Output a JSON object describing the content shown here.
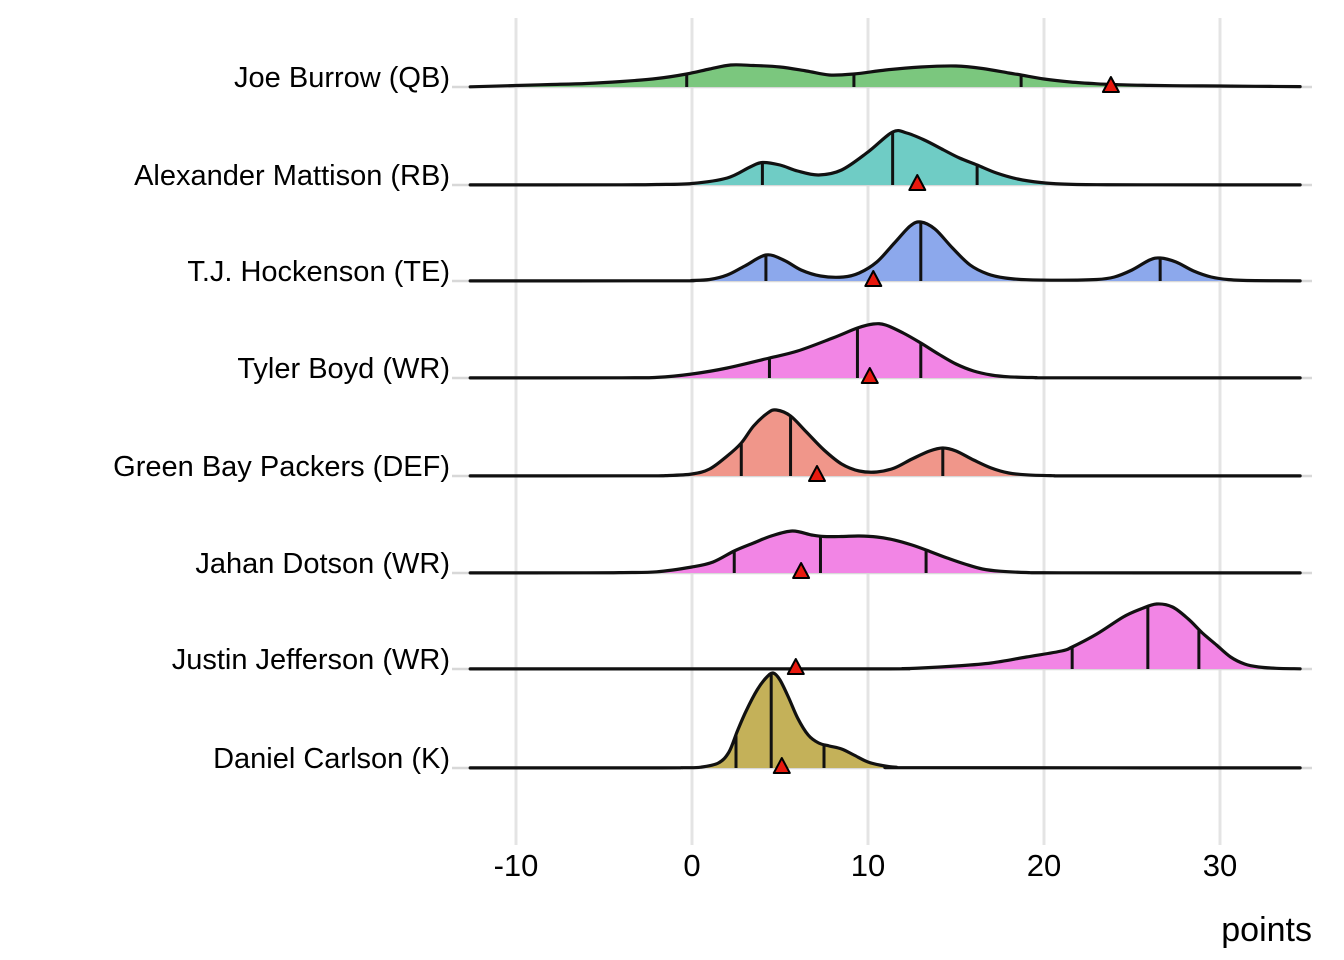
{
  "chart_data": {
    "type": "ridgeline",
    "title": "",
    "xlabel": "points",
    "x_axis": {
      "label": "points",
      "ticks": [
        -10,
        0,
        10,
        20,
        30
      ],
      "range": [
        -13,
        34.5
      ],
      "grid": true
    },
    "marker_meaning": "actual-points-triangle",
    "marker_color": "#e8190e",
    "grid_color": "#e4e4e4",
    "baseline_color": "#d8d8d8",
    "curve_color": "#111111",
    "rows": [
      {
        "label": "Joe Burrow (QB)",
        "fill": "#7bc77e",
        "quantiles": [
          -0.3,
          9.2,
          18.7
        ],
        "actual": 23.8,
        "density": [
          [
            -12.6,
            0.2
          ],
          [
            -10,
            1.5
          ],
          [
            -8,
            2.5
          ],
          [
            -6,
            3.5
          ],
          [
            -4,
            5.5
          ],
          [
            -2,
            8.5
          ],
          [
            -0.3,
            13
          ],
          [
            1,
            18
          ],
          [
            2.2,
            22
          ],
          [
            3.5,
            21.5
          ],
          [
            5,
            20
          ],
          [
            6.5,
            16
          ],
          [
            7.8,
            12
          ],
          [
            9.2,
            13
          ],
          [
            11,
            17
          ],
          [
            13,
            20
          ],
          [
            15,
            21
          ],
          [
            16.5,
            18.5
          ],
          [
            18,
            14
          ],
          [
            18.7,
            12
          ],
          [
            20,
            8
          ],
          [
            21.5,
            5
          ],
          [
            23,
            3.2
          ],
          [
            24.5,
            2.2
          ],
          [
            26,
            1.6
          ],
          [
            28,
            1.2
          ],
          [
            30,
            1
          ],
          [
            32,
            0.7
          ],
          [
            34.55,
            0.4
          ]
        ]
      },
      {
        "label": "Alexander Mattison (RB)",
        "fill": "#6fccc5",
        "quantiles": [
          4.0,
          11.4,
          16.2
        ],
        "actual": 12.8,
        "density": [
          [
            -12.6,
            0.1
          ],
          [
            -4,
            0.2
          ],
          [
            -2,
            0.5
          ],
          [
            0,
            1.5
          ],
          [
            2,
            7
          ],
          [
            3.3,
            18
          ],
          [
            4,
            22.5
          ],
          [
            5,
            20
          ],
          [
            6,
            14
          ],
          [
            7.2,
            10
          ],
          [
            8.5,
            15
          ],
          [
            10,
            33
          ],
          [
            11.4,
            53
          ],
          [
            12.2,
            52
          ],
          [
            13.2,
            45
          ],
          [
            14.3,
            35
          ],
          [
            15.2,
            27
          ],
          [
            16.2,
            20
          ],
          [
            17.3,
            12
          ],
          [
            18.5,
            6
          ],
          [
            19.8,
            2.5
          ],
          [
            21,
            1
          ],
          [
            23,
            0.3
          ],
          [
            26,
            0.15
          ],
          [
            34.55,
            0.1
          ]
        ]
      },
      {
        "label": "T.J. Hockenson (TE)",
        "fill": "#8ca8ec",
        "quantiles": [
          4.2,
          13.0,
          26.6
        ],
        "actual": 10.3,
        "density": [
          [
            -12.6,
            0.1
          ],
          [
            -1,
            0.2
          ],
          [
            0,
            0.5
          ],
          [
            1,
            1.5
          ],
          [
            2,
            6
          ],
          [
            3,
            15
          ],
          [
            4.2,
            26
          ],
          [
            5.2,
            21
          ],
          [
            6.2,
            11
          ],
          [
            7.3,
            5
          ],
          [
            8.6,
            4
          ],
          [
            9.5,
            8
          ],
          [
            10.5,
            19
          ],
          [
            11.5,
            38
          ],
          [
            12.4,
            55
          ],
          [
            13,
            59
          ],
          [
            13.8,
            52
          ],
          [
            14.8,
            33
          ],
          [
            15.8,
            16
          ],
          [
            16.8,
            7
          ],
          [
            17.8,
            3
          ],
          [
            19,
            1.3
          ],
          [
            21,
            0.8
          ],
          [
            23,
            1.5
          ],
          [
            24,
            4
          ],
          [
            25,
            11
          ],
          [
            26,
            21
          ],
          [
            26.6,
            23
          ],
          [
            27.5,
            19
          ],
          [
            28.5,
            10
          ],
          [
            29.5,
            4
          ],
          [
            30.5,
            1.4
          ],
          [
            32,
            0.4
          ],
          [
            34.55,
            0.1
          ]
        ]
      },
      {
        "label": "Tyler Boyd (WR)",
        "fill": "#f285e5",
        "quantiles": [
          4.4,
          9.4,
          13.0
        ],
        "actual": 10.1,
        "density": [
          [
            -12.6,
            0.1
          ],
          [
            -4,
            0.2
          ],
          [
            -2,
            0.6
          ],
          [
            0,
            4
          ],
          [
            2,
            10
          ],
          [
            4.4,
            20
          ],
          [
            6,
            27
          ],
          [
            8,
            40
          ],
          [
            9.4,
            50
          ],
          [
            10.3,
            54
          ],
          [
            11,
            53
          ],
          [
            12,
            45
          ],
          [
            13,
            35
          ],
          [
            14,
            24
          ],
          [
            15,
            14
          ],
          [
            16,
            7
          ],
          [
            17,
            3
          ],
          [
            18,
            1.2
          ],
          [
            19.5,
            0.4
          ],
          [
            21,
            0.2
          ],
          [
            34.55,
            0.1
          ]
        ]
      },
      {
        "label": "Green Bay Packers (DEF)",
        "fill": "#f0968a",
        "quantiles": [
          2.8,
          5.6,
          14.25
        ],
        "actual": 7.1,
        "density": [
          [
            -12.6,
            0.1
          ],
          [
            -3,
            0.2
          ],
          [
            -1.5,
            0.4
          ],
          [
            0,
            2
          ],
          [
            1,
            7
          ],
          [
            2,
            20
          ],
          [
            2.8,
            33
          ],
          [
            3.5,
            50
          ],
          [
            4.3,
            63
          ],
          [
            4.8,
            66
          ],
          [
            5.6,
            60
          ],
          [
            6.5,
            44
          ],
          [
            7.5,
            26
          ],
          [
            8.5,
            12
          ],
          [
            9.5,
            5
          ],
          [
            10.5,
            4
          ],
          [
            11.5,
            8
          ],
          [
            12.5,
            17
          ],
          [
            13.5,
            25
          ],
          [
            14.25,
            28
          ],
          [
            15,
            25
          ],
          [
            16,
            16
          ],
          [
            17,
            8
          ],
          [
            18,
            3
          ],
          [
            19,
            1.2
          ],
          [
            20.5,
            0.3
          ],
          [
            22,
            0.15
          ],
          [
            34.55,
            0.1
          ]
        ]
      },
      {
        "label": "Jahan Dotson (WR)",
        "fill": "#f285e5",
        "quantiles": [
          2.4,
          7.3,
          13.3
        ],
        "actual": 6.2,
        "density": [
          [
            -12.6,
            0.1
          ],
          [
            -6,
            0.2
          ],
          [
            -4,
            0.4
          ],
          [
            -2,
            1.2
          ],
          [
            0,
            6
          ],
          [
            1.2,
            11
          ],
          [
            2.4,
            22
          ],
          [
            3.5,
            30
          ],
          [
            4.5,
            37
          ],
          [
            5.7,
            42
          ],
          [
            6.8,
            38
          ],
          [
            7.5,
            36.5
          ],
          [
            8.5,
            36.5
          ],
          [
            9.5,
            37
          ],
          [
            10.5,
            36
          ],
          [
            11.5,
            33
          ],
          [
            12.5,
            28
          ],
          [
            13.3,
            23
          ],
          [
            14.5,
            15
          ],
          [
            15.5,
            9
          ],
          [
            16.5,
            4
          ],
          [
            17.5,
            1.8
          ],
          [
            19,
            0.5
          ],
          [
            21,
            0.2
          ],
          [
            34.55,
            0.1
          ]
        ]
      },
      {
        "label": "Justin Jefferson (WR)",
        "fill": "#f285e5",
        "quantiles": [
          21.6,
          25.9,
          28.8
        ],
        "actual": 5.9,
        "density": [
          [
            -12.6,
            0.1
          ],
          [
            10,
            0.15
          ],
          [
            12,
            0.4
          ],
          [
            13,
            1
          ],
          [
            15,
            3
          ],
          [
            17,
            6
          ],
          [
            19,
            12
          ],
          [
            21,
            18
          ],
          [
            21.6,
            22
          ],
          [
            23,
            35
          ],
          [
            24.5,
            52
          ],
          [
            25.5,
            60
          ],
          [
            26.4,
            65
          ],
          [
            27.3,
            62
          ],
          [
            28.2,
            50
          ],
          [
            29,
            36
          ],
          [
            29.8,
            24
          ],
          [
            30.6,
            12
          ],
          [
            31.4,
            5
          ],
          [
            32.2,
            2
          ],
          [
            33.2,
            0.7
          ],
          [
            34.55,
            0.2
          ]
        ]
      },
      {
        "label": "Daniel Carlson (K)",
        "fill": "#c4b159",
        "quantiles": [
          2.5,
          4.5,
          7.5
        ],
        "actual": 5.1,
        "density": [
          [
            -12.6,
            0.1
          ],
          [
            -2,
            0.15
          ],
          [
            -0.5,
            0.3
          ],
          [
            0.5,
            0.8
          ],
          [
            1.5,
            5
          ],
          [
            2.1,
            16
          ],
          [
            2.6,
            38
          ],
          [
            3.1,
            58
          ],
          [
            3.7,
            78
          ],
          [
            4.2,
            90
          ],
          [
            4.6,
            95
          ],
          [
            5,
            88
          ],
          [
            5.5,
            70
          ],
          [
            6,
            50
          ],
          [
            6.6,
            33
          ],
          [
            7.2,
            25
          ],
          [
            7.8,
            22
          ],
          [
            8.5,
            19
          ],
          [
            9.2,
            13
          ],
          [
            10,
            6
          ],
          [
            10.8,
            2.5
          ],
          [
            11.6,
            0.8
          ],
          [
            13,
            0.3
          ],
          [
            34.55,
            0.1
          ]
        ]
      }
    ]
  }
}
